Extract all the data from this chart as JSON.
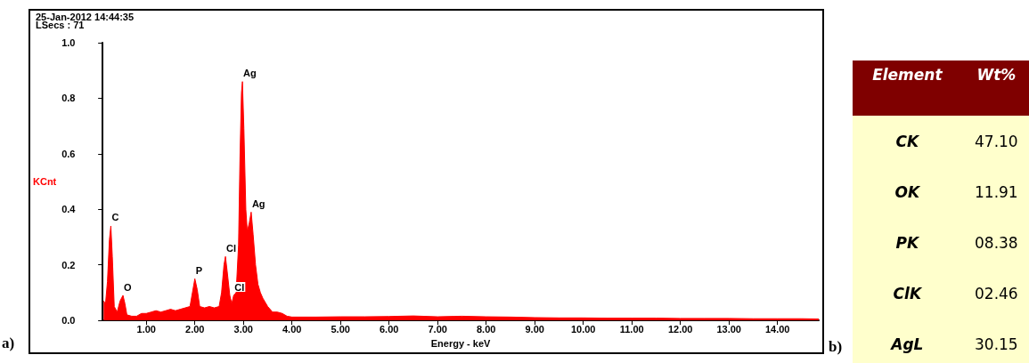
{
  "chart_data": [
    {
      "type": "area",
      "title": "25-Jan-2012 14:44:35",
      "subtitle": "LSecs : 71",
      "xlabel": "Energy - keV",
      "ylabel": "KCnt",
      "x": [
        0.12,
        0.16,
        0.2,
        0.24,
        0.27,
        0.3,
        0.34,
        0.4,
        0.46,
        0.52,
        0.56,
        0.6,
        0.7,
        0.8,
        0.9,
        1.0,
        1.1,
        1.2,
        1.3,
        1.4,
        1.5,
        1.6,
        1.7,
        1.8,
        1.9,
        1.95,
        2.0,
        2.05,
        2.1,
        2.2,
        2.3,
        2.4,
        2.5,
        2.55,
        2.6,
        2.63,
        2.67,
        2.72,
        2.76,
        2.8,
        2.85,
        2.9,
        2.93,
        2.96,
        2.98,
        3.01,
        3.05,
        3.08,
        3.12,
        3.16,
        3.2,
        3.25,
        3.3,
        3.35,
        3.4,
        3.5,
        3.6,
        3.7,
        3.8,
        3.9,
        4.0,
        4.5,
        5.0,
        5.5,
        6.0,
        6.5,
        7.0,
        7.5,
        8.0,
        8.5,
        9.0,
        9.5,
        10.0,
        10.5,
        11.0,
        11.5,
        12.0,
        12.5,
        13.0,
        13.5,
        14.0,
        14.5,
        14.85
      ],
      "series": [
        {
          "color": "#ff0000",
          "values": [
            0.07,
            0.06,
            0.14,
            0.29,
            0.34,
            0.23,
            0.05,
            0.03,
            0.07,
            0.09,
            0.06,
            0.02,
            0.015,
            0.015,
            0.025,
            0.025,
            0.03,
            0.035,
            0.03,
            0.035,
            0.04,
            0.035,
            0.04,
            0.045,
            0.05,
            0.1,
            0.15,
            0.11,
            0.05,
            0.045,
            0.05,
            0.045,
            0.05,
            0.1,
            0.2,
            0.23,
            0.17,
            0.09,
            0.06,
            0.09,
            0.1,
            0.27,
            0.59,
            0.82,
            0.86,
            0.69,
            0.4,
            0.32,
            0.35,
            0.39,
            0.31,
            0.2,
            0.13,
            0.1,
            0.08,
            0.05,
            0.03,
            0.03,
            0.025,
            0.015,
            0.012,
            0.012,
            0.013,
            0.013,
            0.014,
            0.016,
            0.013,
            0.015,
            0.013,
            0.012,
            0.01,
            0.009,
            0.009,
            0.008,
            0.008,
            0.008,
            0.007,
            0.007,
            0.007,
            0.006,
            0.006,
            0.006,
            0.005
          ]
        }
      ],
      "xlim": [
        0.1,
        14.85
      ],
      "xticks": [
        {
          "value": 1,
          "label": "1.00"
        },
        {
          "value": 2,
          "label": "2.00"
        },
        {
          "value": 3,
          "label": "3.00"
        },
        {
          "value": 4,
          "label": "4.00"
        },
        {
          "value": 5,
          "label": "5.00"
        },
        {
          "value": 6,
          "label": "6.00"
        },
        {
          "value": 7,
          "label": "7.00"
        },
        {
          "value": 8,
          "label": "8.00"
        },
        {
          "value": 9,
          "label": "9.00"
        },
        {
          "value": 10,
          "label": "10.00"
        },
        {
          "value": 11,
          "label": "11.00"
        },
        {
          "value": 12,
          "label": "12.00"
        },
        {
          "value": 13,
          "label": "13.00"
        },
        {
          "value": 14,
          "label": "14.00"
        }
      ],
      "ylim": [
        0,
        1
      ],
      "yticks": [
        {
          "value": 0,
          "label": "0.0"
        },
        {
          "value": 0.2,
          "label": "0.2"
        },
        {
          "value": 0.4,
          "label": "0.4"
        },
        {
          "value": 0.6,
          "label": "0.6"
        },
        {
          "value": 0.8,
          "label": "0.8"
        },
        {
          "value": 1,
          "label": "1.0"
        }
      ],
      "grid": false,
      "marker": "none",
      "annotations": [
        "a)",
        {
          "text": "C",
          "x": 0.27,
          "y": 0.34
        },
        {
          "text": "O",
          "x": 0.52,
          "y": 0.09
        },
        {
          "text": "P",
          "x": 2.0,
          "y": 0.15
        },
        {
          "text": "Cl",
          "x": 2.63,
          "y": 0.23
        },
        {
          "text": "Cl",
          "x": 2.8,
          "y": 0.09
        },
        {
          "text": "Ag",
          "x": 2.98,
          "y": 0.86
        },
        {
          "text": "Ag",
          "x": 3.16,
          "y": 0.39
        }
      ]
    },
    {
      "type": "other",
      "xlabel": "Element",
      "ylabel": "Wt%",
      "categories": [
        "CK",
        "OK",
        "PK",
        "ClK",
        "AgL"
      ],
      "value_labels": [
        "47.10",
        "11.91",
        "08.38",
        "02.46",
        "30.15"
      ],
      "annotations": [
        "b)"
      ]
    }
  ]
}
